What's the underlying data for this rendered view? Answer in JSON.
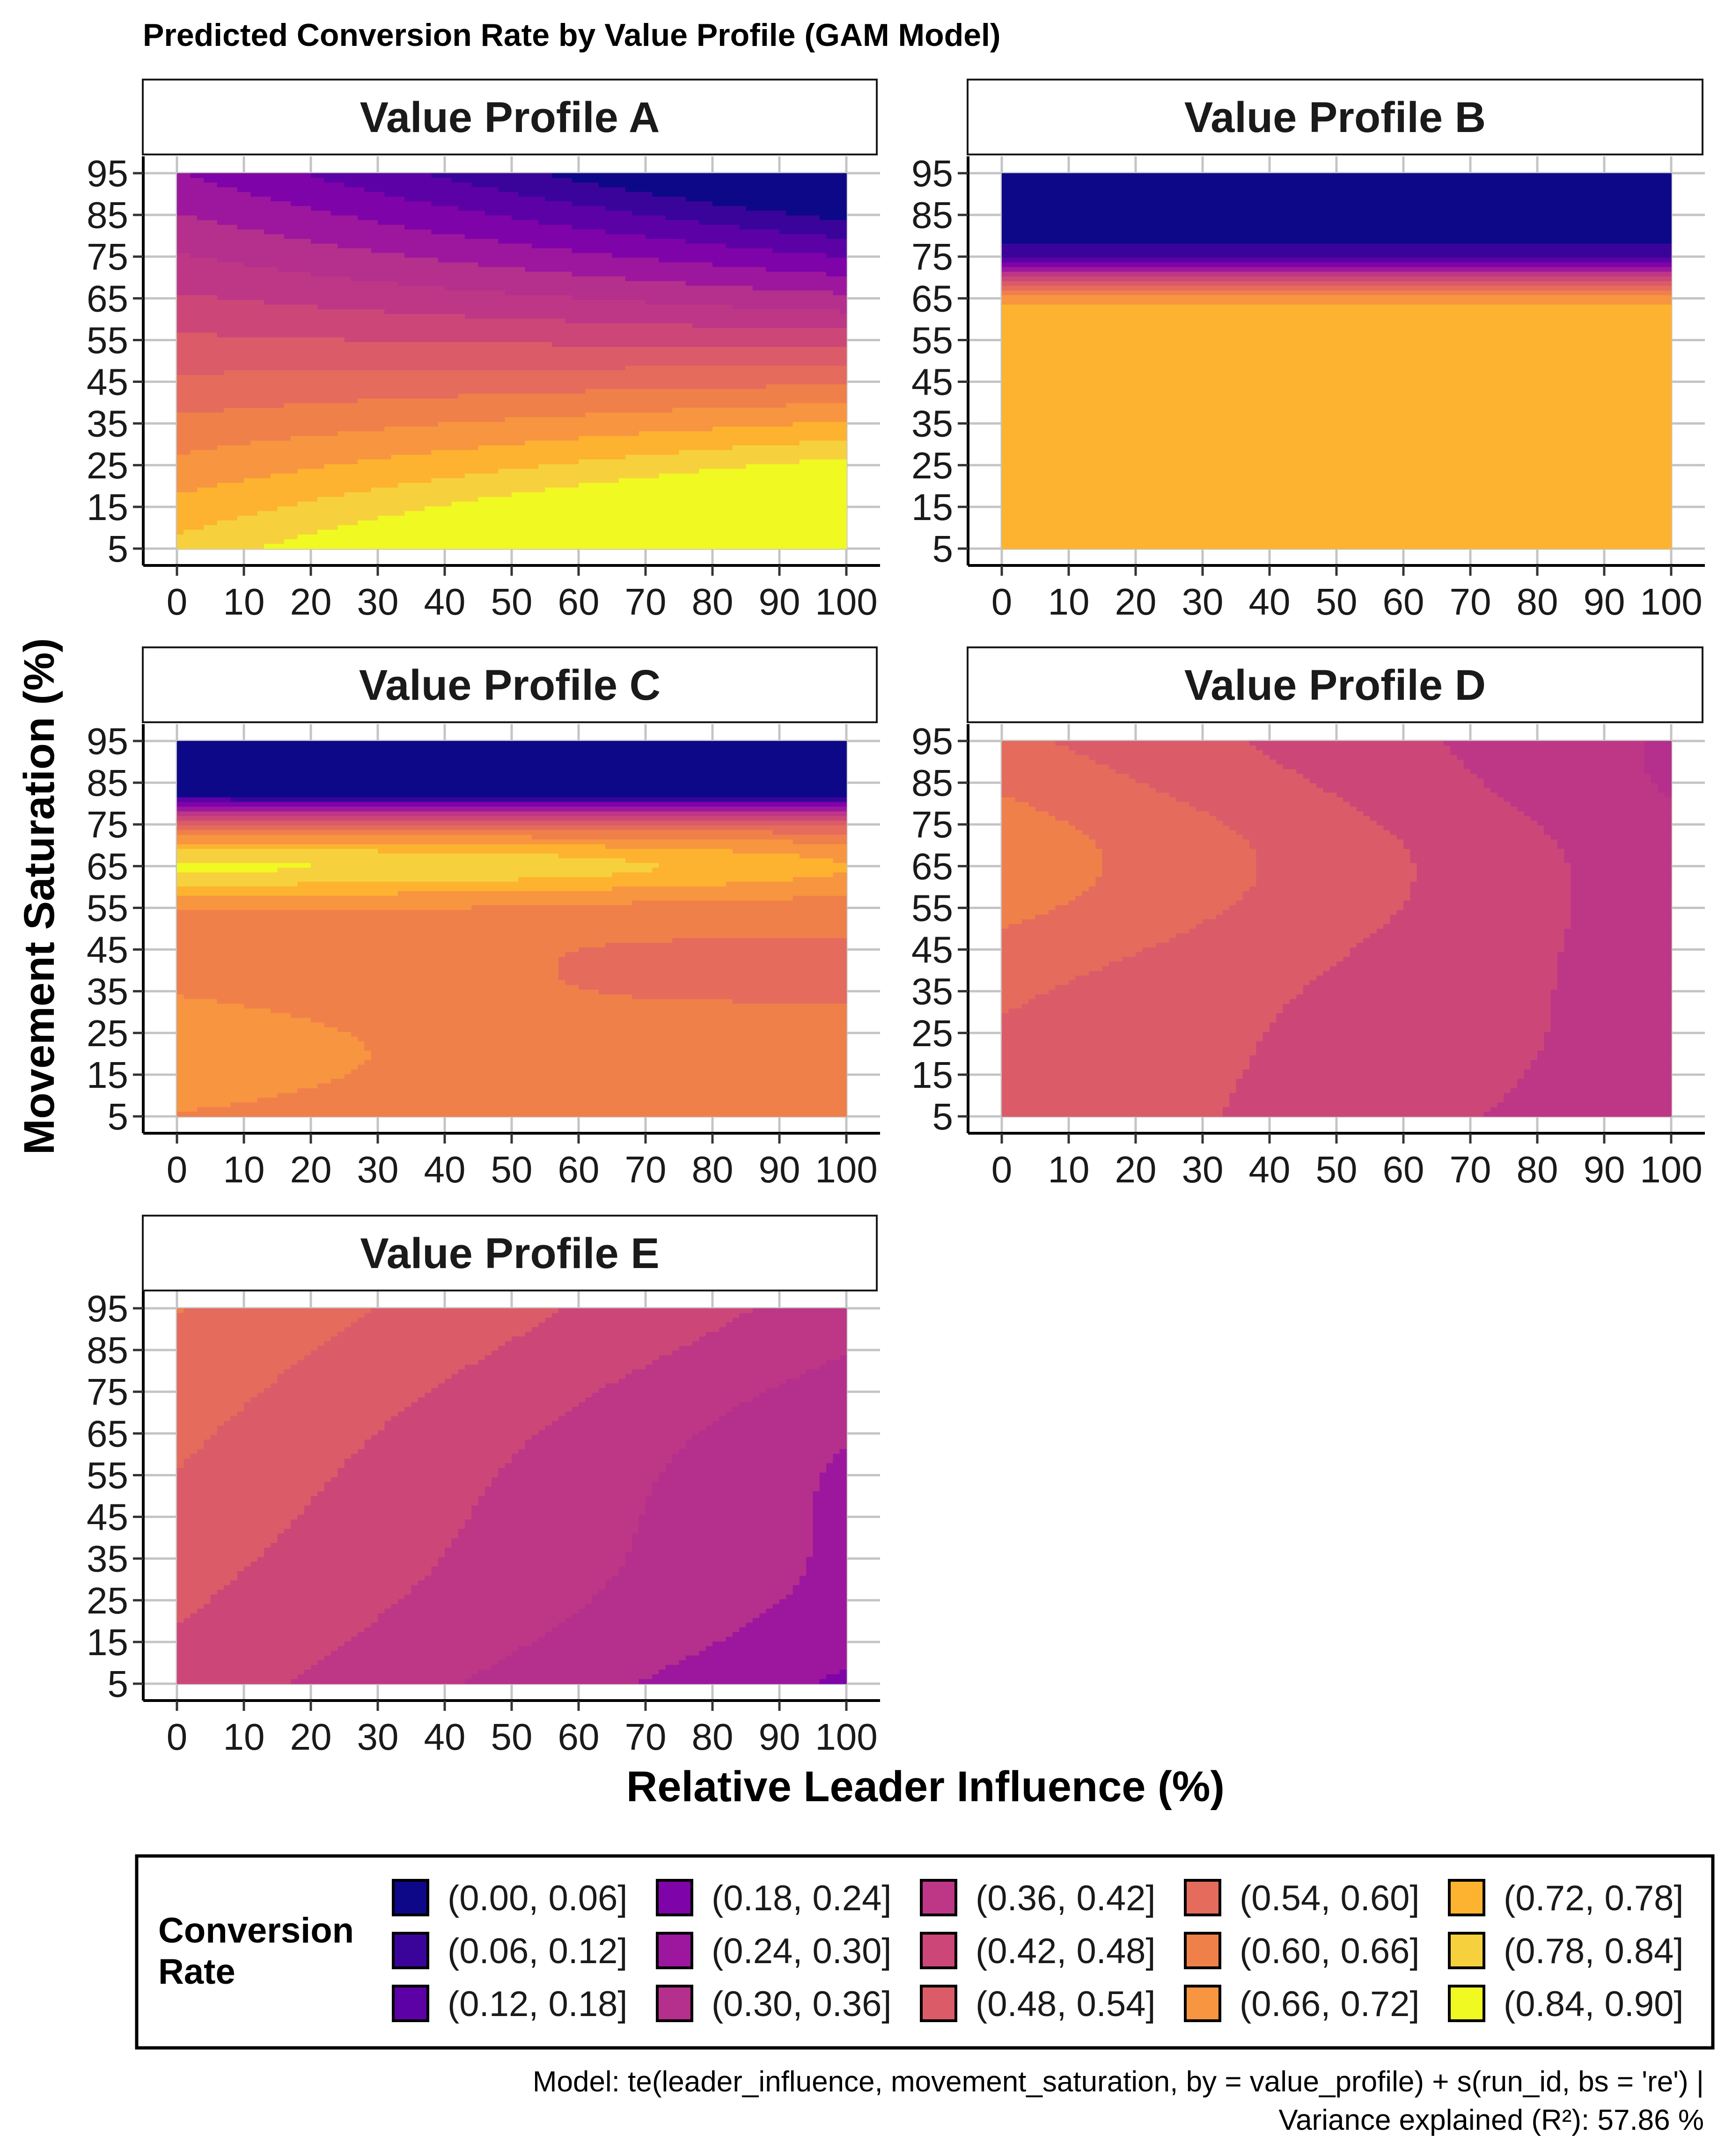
{
  "chart_data": {
    "type": "heatmap",
    "subtype": "filled-contour small multiples",
    "title": "Predicted Conversion Rate by Value Profile (GAM Model)",
    "xlabel": "Relative Leader Influence (%)",
    "ylabel": "Movement Saturation (%)",
    "xlim": [
      0,
      100
    ],
    "ylim": [
      5,
      95
    ],
    "x_ticks": [
      0,
      10,
      20,
      30,
      40,
      50,
      60,
      70,
      80,
      90,
      100
    ],
    "y_ticks": [
      5,
      15,
      25,
      35,
      45,
      55,
      65,
      75,
      85,
      95
    ],
    "grid": true,
    "legend": {
      "title": "Conversion Rate",
      "placement": "bottom",
      "entries": [
        {
          "label": "(0.00, 0.06]",
          "color": "#0D0887"
        },
        {
          "label": "(0.06, 0.12]",
          "color": "#3A049A"
        },
        {
          "label": "(0.12, 0.18]",
          "color": "#5C01A6"
        },
        {
          "label": "(0.18, 0.24]",
          "color": "#7E03A8"
        },
        {
          "label": "(0.24, 0.30]",
          "color": "#9C179E"
        },
        {
          "label": "(0.30, 0.36]",
          "color": "#B52F8C"
        },
        {
          "label": "(0.36, 0.42]",
          "color": "#BD3786"
        },
        {
          "label": "(0.42, 0.48]",
          "color": "#CC4778"
        },
        {
          "label": "(0.48, 0.54]",
          "color": "#DB5C68"
        },
        {
          "label": "(0.54, 0.60]",
          "color": "#E56B5D"
        },
        {
          "label": "(0.60, 0.66]",
          "color": "#F0804A"
        },
        {
          "label": "(0.66, 0.72]",
          "color": "#F89540"
        },
        {
          "label": "(0.72, 0.78]",
          "color": "#FDB32F"
        },
        {
          "label": "(0.78, 0.84]",
          "color": "#F7D13D"
        },
        {
          "label": "(0.84, 0.90]",
          "color": "#F0F921"
        }
      ]
    },
    "panels": [
      {
        "name": "Value Profile A",
        "surface": "A",
        "sampled_conversion_rate": {
          "x": [
            0,
            50,
            100
          ],
          "y": [
            5,
            50,
            95
          ],
          "z": [
            [
              0.78,
              0.81,
              0.85
            ],
            [
              0.45,
              0.4,
              0.35
            ],
            [
              0.2,
              0.12,
              0.06
            ]
          ]
        }
      },
      {
        "name": "Value Profile B",
        "surface": "B",
        "sampled_conversion_rate": {
          "x": [
            0,
            50,
            100
          ],
          "y": [
            5,
            50,
            95
          ],
          "z": [
            [
              0.75,
              0.75,
              0.75
            ],
            [
              0.75,
              0.75,
              0.75
            ],
            [
              0.03,
              0.03,
              0.03
            ]
          ]
        }
      },
      {
        "name": "Value Profile C",
        "surface": "C",
        "sampled_conversion_rate": {
          "x": [
            0,
            50,
            100
          ],
          "y": [
            5,
            65,
            95
          ],
          "z": [
            [
              0.66,
              0.63,
              0.63
            ],
            [
              0.85,
              0.81,
              0.74
            ],
            [
              0.03,
              0.03,
              0.03
            ]
          ]
        }
      },
      {
        "name": "Value Profile D",
        "surface": "D",
        "sampled_conversion_rate": {
          "x": [
            0,
            50,
            100
          ],
          "y": [
            5,
            65,
            95
          ],
          "z": [
            [
              0.53,
              0.45,
              0.38
            ],
            [
              0.64,
              0.52,
              0.37
            ],
            [
              0.58,
              0.44,
              0.28
            ]
          ]
        }
      },
      {
        "name": "Value Profile E",
        "surface": "E",
        "sampled_conversion_rate": {
          "x": [
            0,
            50,
            100
          ],
          "y": [
            5,
            50,
            95
          ],
          "z": [
            [
              0.5,
              0.4,
              0.35
            ],
            [
              0.59,
              0.44,
              0.33
            ],
            [
              0.67,
              0.48,
              0.32
            ]
          ]
        }
      }
    ],
    "caption_line1": "Model: te(leader_influence, movement_saturation, by = value_profile) + s(run_id, bs = 're') |",
    "caption_line2": "Variance explained (R²): 57.86 %"
  }
}
